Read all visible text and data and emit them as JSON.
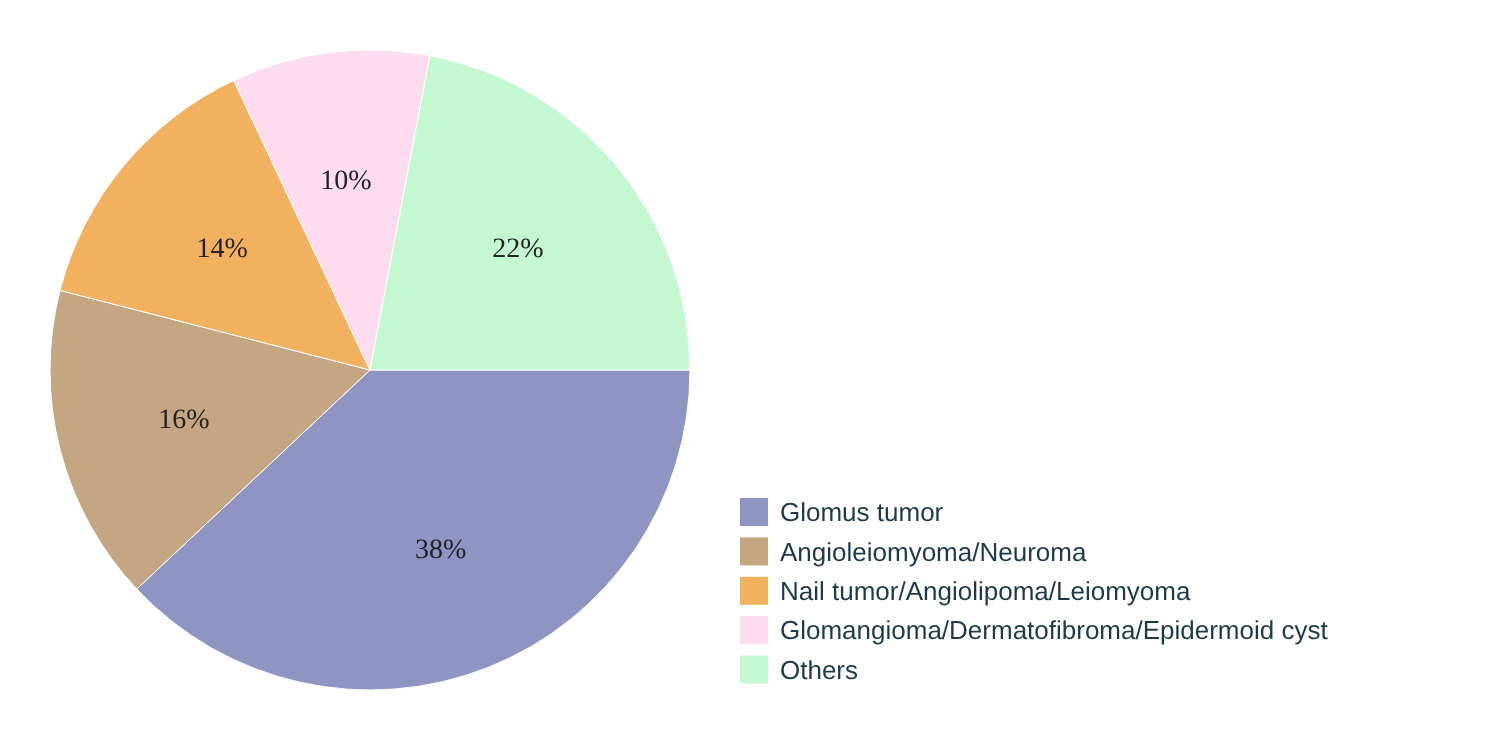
{
  "chart_data": {
    "type": "pie",
    "categories": [
      "Glomus tumor",
      "Angioleiomyoma/Neuroma",
      "Nail tumor/Angiolipoma/Leiomyoma",
      "Glomangioma/Dermatofibroma/Epidermoid cyst",
      "Others"
    ],
    "values": [
      38,
      16,
      14,
      10,
      22
    ],
    "colors": [
      "#8e95c3",
      "#c4a682",
      "#f2b15f",
      "#fddcef",
      "#c3f8d0"
    ],
    "value_labels": [
      "38%",
      "16%",
      "14%",
      "10%",
      "22%"
    ],
    "legend": "right"
  }
}
